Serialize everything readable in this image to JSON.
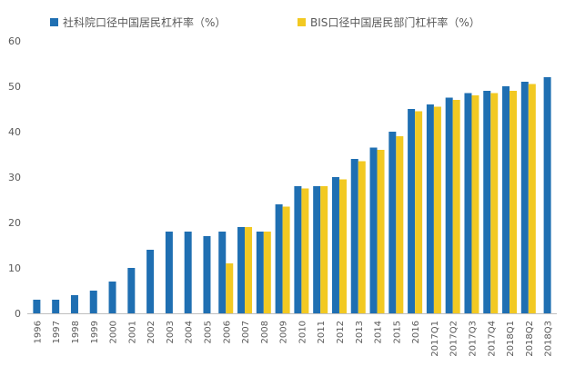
{
  "chart_data": {
    "type": "bar",
    "categories": [
      "1996",
      "1997",
      "1998",
      "1999",
      "2000",
      "2001",
      "2002",
      "2003",
      "2004",
      "2005",
      "2006",
      "2007",
      "2008",
      "2009",
      "2010",
      "2011",
      "2012",
      "2013",
      "2014",
      "2015",
      "2016",
      "2017Q1",
      "2017Q2",
      "2017Q3",
      "2017Q4",
      "2018Q1",
      "2018Q2",
      "2018Q3"
    ],
    "series": [
      {
        "name": "社科院口径中国居民杠杆率（%）",
        "color": "#1F6FB2",
        "values": [
          3,
          3,
          4,
          5,
          7,
          10,
          14,
          18,
          18,
          17,
          18,
          19,
          18,
          24,
          28,
          28,
          30,
          34,
          36.5,
          40,
          45,
          46,
          47.5,
          48.5,
          49,
          50,
          51,
          52
        ]
      },
      {
        "name": "BIS口径中国居民部门杠杆率（%）",
        "color": "#F2C922",
        "values": [
          null,
          null,
          null,
          null,
          null,
          null,
          null,
          null,
          null,
          null,
          11,
          19,
          18,
          23.5,
          27.5,
          28,
          29.5,
          33.5,
          36,
          39,
          44.5,
          45.5,
          47,
          48,
          48.5,
          49,
          50.5,
          null
        ]
      }
    ],
    "ylim": [
      0,
      60
    ],
    "yticks": [
      0,
      10,
      20,
      30,
      40,
      50,
      60
    ],
    "grid": false,
    "legend_position": "top"
  }
}
